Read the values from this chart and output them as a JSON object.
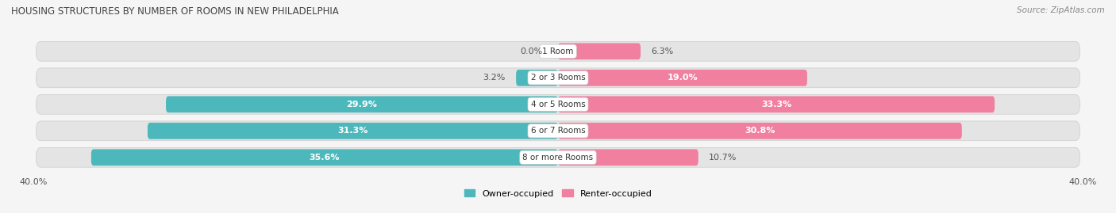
{
  "title": "HOUSING STRUCTURES BY NUMBER OF ROOMS IN NEW PHILADELPHIA",
  "source": "Source: ZipAtlas.com",
  "categories": [
    "1 Room",
    "2 or 3 Rooms",
    "4 or 5 Rooms",
    "6 or 7 Rooms",
    "8 or more Rooms"
  ],
  "owner_values": [
    0.0,
    3.2,
    29.9,
    31.3,
    35.6
  ],
  "renter_values": [
    6.3,
    19.0,
    33.3,
    30.8,
    10.7
  ],
  "owner_color": "#4db8bc",
  "renter_color": "#f07fa0",
  "axis_max": 40.0,
  "bg_color": "#f5f5f5",
  "row_bg_color": "#e4e4e4",
  "title_fontsize": 8.5,
  "source_fontsize": 7.5,
  "bar_label_fontsize": 8,
  "category_fontsize": 7.5,
  "axis_label_fontsize": 8,
  "bar_height": 0.62,
  "owner_label_white_threshold": 5,
  "renter_label_white_threshold": 12
}
